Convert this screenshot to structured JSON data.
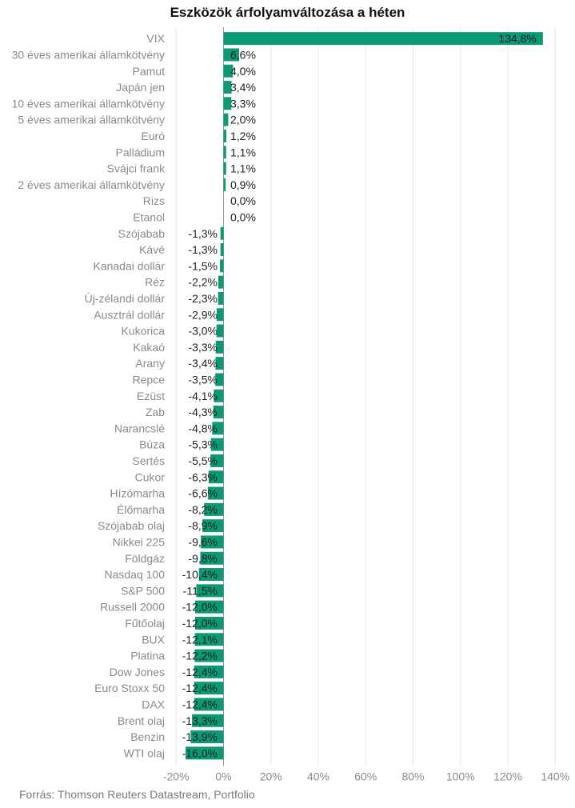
{
  "source": "Forrás: Thomson Reuters Datastream, Portfolio",
  "chart_data": {
    "type": "bar",
    "orientation": "horizontal",
    "title": "Eszközök árfolyamváltozása a héten",
    "xlabel": "",
    "ylabel": "",
    "xlim": [
      -20,
      140
    ],
    "grid": true,
    "bar_color": "#0b9a74",
    "x_ticks": [
      -20,
      0,
      20,
      40,
      60,
      80,
      100,
      120,
      140
    ],
    "x_tick_labels": [
      "-20%",
      "0%",
      "20%",
      "40%",
      "60%",
      "80%",
      "100%",
      "120%",
      "140%"
    ],
    "categories": [
      "VIX",
      "30 éves amerikai államkötvény",
      "Pamut",
      "Japán jen",
      "10 éves amerikai államkötvény",
      "5 éves amerikai államkötvény",
      "Euró",
      "Palládium",
      "Svájci frank",
      "2 éves amerikai államkötvény",
      "Rizs",
      "Etanol",
      "Szójabab",
      "Kávé",
      "Kanadai dollár",
      "Réz",
      "Új-zélandi dollár",
      "Ausztrál dollár",
      "Kukorica",
      "Kakaó",
      "Arany",
      "Repce",
      "Ezüst",
      "Zab",
      "Narancslé",
      "Búza",
      "Sertés",
      "Cukor",
      "Hízómarha",
      "Élőmarha",
      "Szójabab olaj",
      "Nikkei 225",
      "Földgáz",
      "Nasdaq 100",
      "S&P 500",
      "Russell 2000",
      "Fűtőolaj",
      "BUX",
      "Platina",
      "Dow Jones",
      "Euro Stoxx 50",
      "DAX",
      "Brent olaj",
      "Benzin",
      "WTI olaj"
    ],
    "values": [
      134.8,
      6.6,
      4.0,
      3.4,
      3.3,
      2.0,
      1.2,
      1.1,
      1.1,
      0.9,
      0.0,
      0.0,
      -1.3,
      -1.3,
      -1.5,
      -2.2,
      -2.3,
      -2.9,
      -3.0,
      -3.3,
      -3.4,
      -3.5,
      -4.1,
      -4.3,
      -4.8,
      -5.3,
      -5.5,
      -6.3,
      -6.6,
      -8.2,
      -8.9,
      -9.6,
      -9.8,
      -10.4,
      -11.5,
      -12.0,
      -12.0,
      -12.1,
      -12.2,
      -12.4,
      -12.4,
      -12.4,
      -13.3,
      -13.9,
      -16.0
    ],
    "data_labels": [
      "134,8%",
      "6,6%",
      "4,0%",
      "3,4%",
      "3,3%",
      "2,0%",
      "1,2%",
      "1,1%",
      "1,1%",
      "0,9%",
      "0,0%",
      "0,0%",
      "-1,3%",
      "-1,3%",
      "-1,5%",
      "-2,2%",
      "-2,3%",
      "-2,9%",
      "-3,0%",
      "-3,3%",
      "-3,4%",
      "-3,5%",
      "-4,1%",
      "-4,3%",
      "-4,8%",
      "-5,3%",
      "-5,5%",
      "-6,3%",
      "-6,6%",
      "-8,2%",
      "-8,9%",
      "-9,6%",
      "-9,8%",
      "-10,4%",
      "-11,5%",
      "-12,0%",
      "-12,0%",
      "-12,1%",
      "-12,2%",
      "-12,4%",
      "-12,4%",
      "-12,4%",
      "-13,3%",
      "-13,9%",
      "-16,0%"
    ]
  }
}
